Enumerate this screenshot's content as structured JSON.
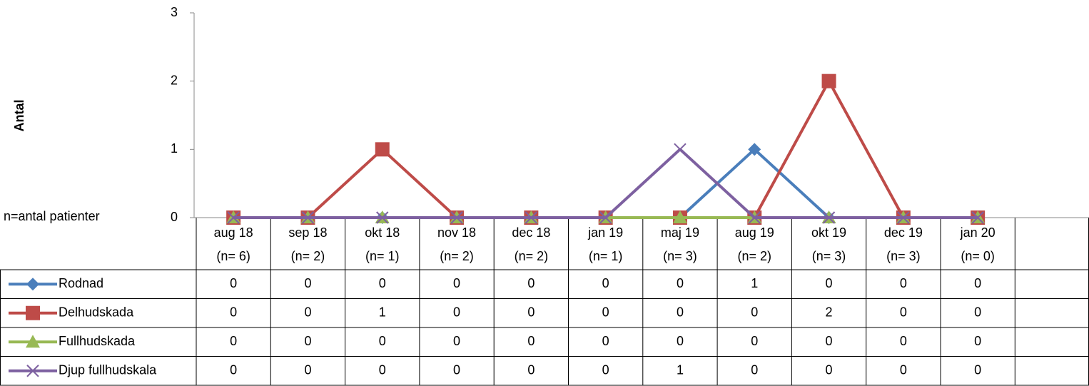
{
  "chart_data": {
    "type": "line",
    "y_label": "Antal",
    "annotation": "n=antal patienter",
    "categories": [
      "aug 18",
      "sep 18",
      "okt 18",
      "nov 18",
      "dec 18",
      "jan 19",
      "maj 19",
      "aug 19",
      "okt 19",
      "dec 19",
      "jan 20"
    ],
    "category_counts": [
      "(n= 6)",
      "(n= 2)",
      "(n= 1)",
      "(n= 2)",
      "(n= 2)",
      "(n= 1)",
      "(n= 3)",
      "(n= 2)",
      "(n= 3)",
      "(n= 3)",
      "(n= 0)"
    ],
    "series": [
      {
        "name": "Rodnad",
        "color": "#4a7ebb",
        "marker": "diamond",
        "values": [
          0,
          0,
          0,
          0,
          0,
          0,
          0,
          1,
          0,
          0,
          0
        ]
      },
      {
        "name": "Delhudskada",
        "color": "#be4b48",
        "marker": "square",
        "values": [
          0,
          0,
          1,
          0,
          0,
          0,
          0,
          0,
          2,
          0,
          0
        ]
      },
      {
        "name": "Fullhudskada",
        "color": "#98b954",
        "marker": "triangle",
        "values": [
          0,
          0,
          0,
          0,
          0,
          0,
          0,
          0,
          0,
          0,
          0
        ]
      },
      {
        "name": "Djup fullhudskala",
        "color": "#7d60a0",
        "marker": "x",
        "values": [
          0,
          0,
          0,
          0,
          0,
          0,
          1,
          0,
          0,
          0,
          0
        ]
      }
    ],
    "ylim": [
      0,
      3
    ],
    "yticks": [
      0,
      1,
      2,
      3
    ],
    "grid": false,
    "data_table": true
  }
}
